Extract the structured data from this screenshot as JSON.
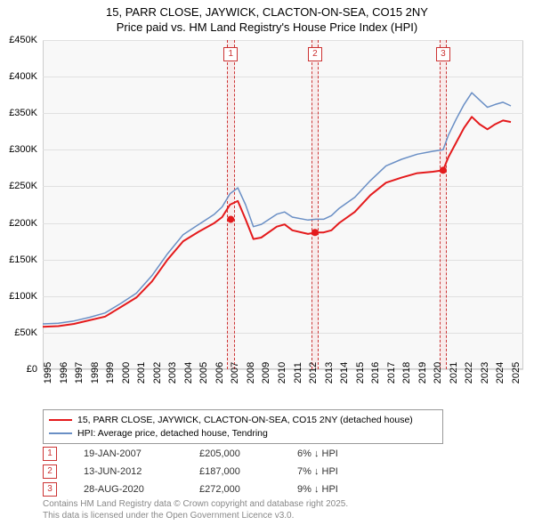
{
  "title_line1": "15, PARR CLOSE, JAYWICK, CLACTON-ON-SEA, CO15 2NY",
  "title_line2": "Price paid vs. HM Land Registry's House Price Index (HPI)",
  "chart": {
    "type": "line",
    "background_color": "#f8f8f8",
    "grid_color": "#e0e0e0",
    "border_color": "#cccccc",
    "x_years": [
      1995,
      1996,
      1997,
      1998,
      1999,
      2000,
      2001,
      2002,
      2003,
      2004,
      2005,
      2006,
      2007,
      2008,
      2009,
      2010,
      2011,
      2012,
      2013,
      2014,
      2015,
      2016,
      2017,
      2018,
      2019,
      2020,
      2021,
      2022,
      2023,
      2024,
      2025
    ],
    "xlim": [
      1995,
      2025.8
    ],
    "ylim": [
      0,
      450000
    ],
    "ytick_step": 50000,
    "ytick_labels": [
      "£0",
      "£50K",
      "£100K",
      "£150K",
      "£200K",
      "£250K",
      "£300K",
      "£350K",
      "£400K",
      "£450K"
    ],
    "series": [
      {
        "name": "property",
        "label": "15, PARR CLOSE, JAYWICK, CLACTON-ON-SEA, CO15 2NY (detached house)",
        "color": "#e41a1c",
        "width": 2,
        "points": [
          [
            1995,
            58000
          ],
          [
            1996,
            59000
          ],
          [
            1997,
            62000
          ],
          [
            1998,
            67000
          ],
          [
            1999,
            72000
          ],
          [
            2000,
            85000
          ],
          [
            2001,
            98000
          ],
          [
            2002,
            120000
          ],
          [
            2003,
            150000
          ],
          [
            2004,
            175000
          ],
          [
            2005,
            188000
          ],
          [
            2006,
            200000
          ],
          [
            2006.5,
            208000
          ],
          [
            2007,
            225000
          ],
          [
            2007.5,
            230000
          ],
          [
            2008,
            205000
          ],
          [
            2008.5,
            178000
          ],
          [
            2009,
            180000
          ],
          [
            2010,
            195000
          ],
          [
            2010.5,
            198000
          ],
          [
            2011,
            190000
          ],
          [
            2012,
            185000
          ],
          [
            2012.5,
            187000
          ],
          [
            2013,
            187000
          ],
          [
            2013.5,
            190000
          ],
          [
            2014,
            200000
          ],
          [
            2015,
            215000
          ],
          [
            2016,
            238000
          ],
          [
            2017,
            255000
          ],
          [
            2018,
            262000
          ],
          [
            2019,
            268000
          ],
          [
            2020,
            270000
          ],
          [
            2020.66,
            272000
          ],
          [
            2021,
            290000
          ],
          [
            2021.5,
            310000
          ],
          [
            2022,
            330000
          ],
          [
            2022.5,
            345000
          ],
          [
            2023,
            335000
          ],
          [
            2023.5,
            328000
          ],
          [
            2024,
            335000
          ],
          [
            2024.5,
            340000
          ],
          [
            2025,
            338000
          ]
        ]
      },
      {
        "name": "hpi",
        "label": "HPI: Average price, detached house, Tendring",
        "color": "#6a8fc5",
        "width": 1.5,
        "points": [
          [
            1995,
            62000
          ],
          [
            1996,
            63000
          ],
          [
            1997,
            66000
          ],
          [
            1998,
            71000
          ],
          [
            1999,
            77000
          ],
          [
            2000,
            90000
          ],
          [
            2001,
            104000
          ],
          [
            2002,
            128000
          ],
          [
            2003,
            158000
          ],
          [
            2004,
            184000
          ],
          [
            2005,
            198000
          ],
          [
            2006,
            212000
          ],
          [
            2006.5,
            222000
          ],
          [
            2007,
            240000
          ],
          [
            2007.5,
            248000
          ],
          [
            2008,
            225000
          ],
          [
            2008.5,
            195000
          ],
          [
            2009,
            198000
          ],
          [
            2010,
            212000
          ],
          [
            2010.5,
            215000
          ],
          [
            2011,
            208000
          ],
          [
            2012,
            204000
          ],
          [
            2012.5,
            205000
          ],
          [
            2013,
            205000
          ],
          [
            2013.5,
            210000
          ],
          [
            2014,
            220000
          ],
          [
            2015,
            235000
          ],
          [
            2016,
            258000
          ],
          [
            2017,
            278000
          ],
          [
            2018,
            287000
          ],
          [
            2019,
            294000
          ],
          [
            2020,
            298000
          ],
          [
            2020.66,
            300000
          ],
          [
            2021,
            320000
          ],
          [
            2021.5,
            342000
          ],
          [
            2022,
            362000
          ],
          [
            2022.5,
            378000
          ],
          [
            2023,
            368000
          ],
          [
            2023.5,
            358000
          ],
          [
            2024,
            362000
          ],
          [
            2024.5,
            365000
          ],
          [
            2025,
            360000
          ]
        ]
      }
    ],
    "sale_events": [
      {
        "idx": "1",
        "year": 2007.05,
        "price": 205000
      },
      {
        "idx": "2",
        "year": 2012.45,
        "price": 187000
      },
      {
        "idx": "3",
        "year": 2020.66,
        "price": 272000
      }
    ],
    "sale_band_width_years": 0.25,
    "sale_band_color": "rgba(255,0,0,0.05)",
    "sale_dash_color": "#cc3333"
  },
  "legend": {
    "rows": [
      {
        "color": "#e41a1c",
        "width": 2,
        "label": "15, PARR CLOSE, JAYWICK, CLACTON-ON-SEA, CO15 2NY (detached house)"
      },
      {
        "color": "#6a8fc5",
        "width": 1.5,
        "label": "HPI: Average price, detached house, Tendring"
      }
    ]
  },
  "sales_table": {
    "rows": [
      {
        "idx": "1",
        "date": "19-JAN-2007",
        "price": "£205,000",
        "diff": "6% ↓ HPI"
      },
      {
        "idx": "2",
        "date": "13-JUN-2012",
        "price": "£187,000",
        "diff": "7% ↓ HPI"
      },
      {
        "idx": "3",
        "date": "28-AUG-2020",
        "price": "£272,000",
        "diff": "9% ↓ HPI"
      }
    ]
  },
  "footnote_line1": "Contains HM Land Registry data © Crown copyright and database right 2025.",
  "footnote_line2": "This data is licensed under the Open Government Licence v3.0."
}
